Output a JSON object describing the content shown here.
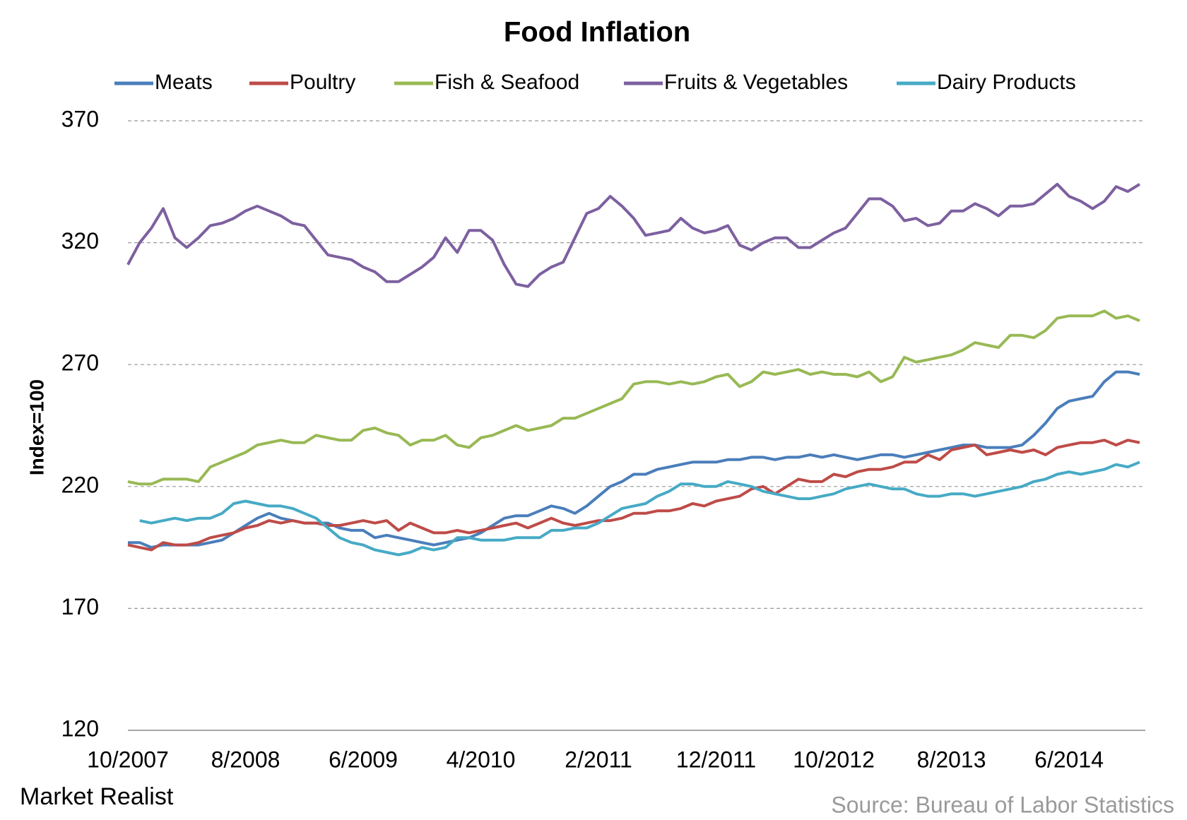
{
  "chart_data": {
    "type": "line",
    "title": "Food Inflation",
    "y_label": "Index=100",
    "brand": "Market Realist",
    "source": "Source: Bureau of Labor Statistics",
    "categories": [
      "10/2007",
      null,
      null,
      null,
      null,
      null,
      null,
      null,
      null,
      null,
      "8/2008",
      null,
      null,
      null,
      null,
      null,
      null,
      null,
      null,
      null,
      "6/2009",
      null,
      null,
      null,
      null,
      null,
      null,
      null,
      null,
      null,
      "4/2010",
      null,
      null,
      null,
      null,
      null,
      null,
      null,
      null,
      null,
      "2/2011",
      null,
      null,
      null,
      null,
      null,
      null,
      null,
      null,
      null,
      "12/2011",
      null,
      null,
      null,
      null,
      null,
      null,
      null,
      null,
      null,
      "10/2012",
      null,
      null,
      null,
      null,
      null,
      null,
      null,
      null,
      null,
      "8/2013",
      null,
      null,
      null,
      null,
      null,
      null,
      null,
      null,
      null,
      "6/2014",
      null,
      null,
      null,
      null,
      null,
      null
    ],
    "ylim": [
      120,
      370
    ],
    "yticks": [
      120,
      170,
      220,
      270,
      320,
      370
    ],
    "grid": true,
    "legend": "top",
    "series": [
      {
        "name": "Meats",
        "color": "#4a7ebb",
        "values": [
          197,
          197,
          195,
          196,
          196,
          196,
          196,
          197,
          198,
          201,
          204,
          207,
          209,
          207,
          206,
          205,
          205,
          205,
          203,
          202,
          202,
          199,
          200,
          199,
          198,
          197,
          196,
          197,
          198,
          199,
          201,
          204,
          207,
          208,
          208,
          210,
          212,
          211,
          209,
          212,
          216,
          220,
          222,
          225,
          225,
          227,
          228,
          229,
          230,
          230,
          230,
          231,
          231,
          232,
          232,
          231,
          232,
          232,
          233,
          232,
          233,
          232,
          231,
          232,
          233,
          233,
          232,
          233,
          234,
          235,
          236,
          237,
          237,
          236,
          236,
          236,
          237,
          241,
          246,
          252,
          255,
          256,
          257,
          263,
          267,
          267,
          266
        ]
      },
      {
        "name": "Poultry",
        "color": "#be4b48",
        "values": [
          196,
          195,
          194,
          197,
          196,
          196,
          197,
          199,
          200,
          201,
          203,
          204,
          206,
          205,
          206,
          205,
          205,
          204,
          204,
          205,
          206,
          205,
          206,
          202,
          205,
          203,
          201,
          201,
          202,
          201,
          202,
          203,
          204,
          205,
          203,
          205,
          207,
          205,
          204,
          205,
          206,
          206,
          207,
          209,
          209,
          210,
          210,
          211,
          213,
          212,
          214,
          215,
          216,
          219,
          220,
          217,
          220,
          223,
          222,
          222,
          225,
          224,
          226,
          227,
          227,
          228,
          230,
          230,
          233,
          231,
          235,
          236,
          237,
          233,
          234,
          235,
          234,
          235,
          233,
          236,
          237,
          238,
          238,
          239,
          237,
          239,
          238
        ]
      },
      {
        "name": "Fish & Seafood",
        "color": "#98b954",
        "values": [
          222,
          221,
          221,
          223,
          223,
          223,
          222,
          228,
          230,
          232,
          234,
          237,
          238,
          239,
          238,
          238,
          241,
          240,
          239,
          239,
          243,
          244,
          242,
          241,
          237,
          239,
          239,
          241,
          237,
          236,
          240,
          241,
          243,
          245,
          243,
          244,
          245,
          248,
          248,
          250,
          252,
          254,
          256,
          262,
          263,
          263,
          262,
          263,
          262,
          263,
          265,
          266,
          261,
          263,
          267,
          266,
          267,
          268,
          266,
          267,
          266,
          266,
          265,
          267,
          263,
          265,
          273,
          271,
          272,
          273,
          274,
          276,
          279,
          278,
          277,
          282,
          282,
          281,
          284,
          289,
          290,
          290,
          290,
          292,
          289,
          290,
          288
        ]
      },
      {
        "name": "Fruits & Vegetables",
        "color": "#7d60a0",
        "values": [
          311,
          320,
          326,
          334,
          322,
          318,
          322,
          327,
          328,
          330,
          333,
          335,
          333,
          331,
          328,
          327,
          321,
          315,
          314,
          313,
          310,
          308,
          304,
          304,
          307,
          310,
          314,
          322,
          316,
          325,
          325,
          321,
          311,
          303,
          302,
          307,
          310,
          312,
          322,
          332,
          334,
          339,
          335,
          330,
          323,
          324,
          325,
          330,
          326,
          324,
          325,
          327,
          319,
          317,
          320,
          322,
          322,
          318,
          318,
          321,
          324,
          326,
          332,
          338,
          338,
          335,
          329,
          330,
          327,
          328,
          333,
          333,
          336,
          334,
          331,
          335,
          335,
          336,
          340,
          344,
          339,
          337,
          334,
          337,
          343,
          341,
          344
        ]
      },
      {
        "name": "Dairy Products",
        "color": "#46aac5",
        "values": [
          null,
          206,
          205,
          206,
          207,
          206,
          207,
          207,
          209,
          213,
          214,
          213,
          212,
          212,
          211,
          209,
          207,
          203,
          199,
          197,
          196,
          194,
          193,
          192,
          193,
          195,
          194,
          195,
          199,
          199,
          198,
          198,
          198,
          199,
          199,
          199,
          202,
          202,
          203,
          203,
          205,
          208,
          211,
          212,
          213,
          216,
          218,
          221,
          221,
          220,
          220,
          222,
          221,
          220,
          218,
          217,
          216,
          215,
          215,
          216,
          217,
          219,
          220,
          221,
          220,
          219,
          219,
          217,
          216,
          216,
          217,
          217,
          216,
          217,
          218,
          219,
          220,
          222,
          223,
          225,
          226,
          225,
          226,
          227,
          229,
          228,
          230
        ]
      }
    ]
  }
}
